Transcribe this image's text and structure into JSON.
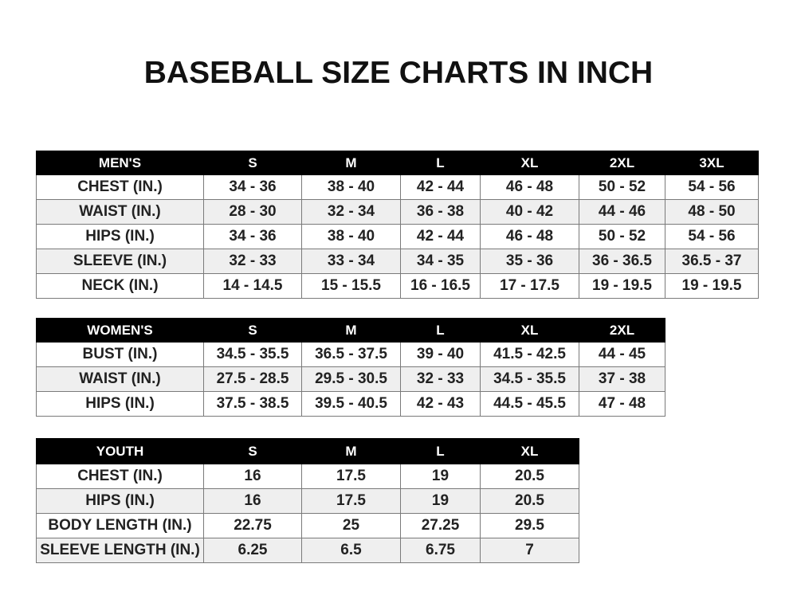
{
  "title": "BASEBALL SIZE CHARTS IN INCH",
  "men": {
    "headers": [
      "MEN'S",
      "S",
      "M",
      "L",
      "XL",
      "2XL",
      "3XL"
    ],
    "rows": [
      [
        "CHEST (IN.)",
        "34 - 36",
        "38 - 40",
        "42 - 44",
        "46 - 48",
        "50 - 52",
        "54 - 56"
      ],
      [
        "WAIST (IN.)",
        "28 - 30",
        "32 - 34",
        "36 - 38",
        "40 - 42",
        "44 - 46",
        "48 - 50"
      ],
      [
        "HIPS (IN.)",
        "34 - 36",
        "38 - 40",
        "42 - 44",
        "46 - 48",
        "50 - 52",
        "54 - 56"
      ],
      [
        "SLEEVE (IN.)",
        "32 - 33",
        "33 - 34",
        "34 - 35",
        "35 - 36",
        "36 - 36.5",
        "36.5 - 37"
      ],
      [
        "NECK (IN.)",
        "14 - 14.5",
        "15 - 15.5",
        "16 - 16.5",
        "17 - 17.5",
        "19 - 19.5",
        "19 - 19.5"
      ]
    ]
  },
  "women": {
    "headers": [
      "WOMEN'S",
      "S",
      "M",
      "L",
      "XL",
      "2XL"
    ],
    "rows": [
      [
        "BUST (IN.)",
        "34.5 - 35.5",
        "36.5 - 37.5",
        "39 - 40",
        "41.5 - 42.5",
        "44 - 45"
      ],
      [
        "WAIST (IN.)",
        "27.5 - 28.5",
        "29.5 - 30.5",
        "32 - 33",
        "34.5 - 35.5",
        "37 - 38"
      ],
      [
        "HIPS (IN.)",
        "37.5 - 38.5",
        "39.5 - 40.5",
        "42 - 43",
        "44.5 - 45.5",
        "47 - 48"
      ]
    ]
  },
  "youth": {
    "headers": [
      "YOUTH",
      "S",
      "M",
      "L",
      "XL"
    ],
    "rows": [
      [
        "CHEST (IN.)",
        "16",
        "17.5",
        "19",
        "20.5"
      ],
      [
        "HIPS (IN.)",
        "16",
        "17.5",
        "19",
        "20.5"
      ],
      [
        "BODY LENGTH (IN.)",
        "22.75",
        "25",
        "27.25",
        "29.5"
      ],
      [
        "SLEEVE LENGTH (IN.)",
        "6.25",
        "6.5",
        "6.75",
        "7"
      ]
    ]
  }
}
